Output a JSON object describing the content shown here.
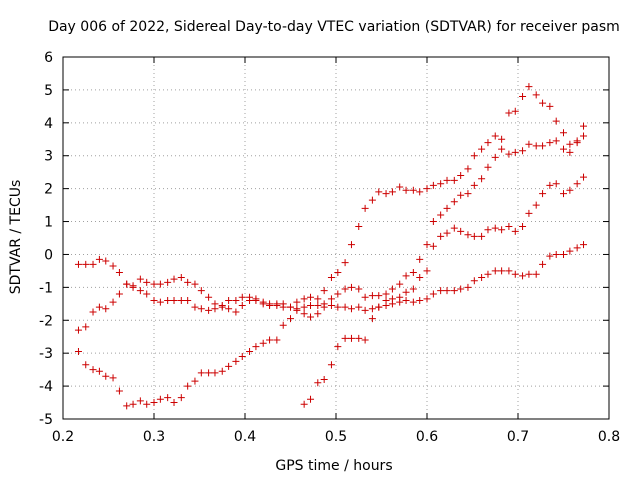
{
  "chart_data": {
    "type": "scatter",
    "title": "Day 006 of 2022, Sidereal Day-to-day VTEC variation (SDTVAR) for receiver pasm",
    "xlabel": "GPS time / hours",
    "ylabel": "SDTVAR / TECUs",
    "xlim": [
      0.2,
      0.8
    ],
    "ylim": [
      -5,
      6
    ],
    "grid": true,
    "legend": "none",
    "marker": "plus",
    "color": "#cc0000",
    "x_ticks": [
      "0.2",
      "0.3",
      "0.4",
      "0.5",
      "0.6",
      "0.7",
      "0.8"
    ],
    "y_ticks": [
      "-5",
      "-4",
      "-3",
      "-2",
      "-1",
      "0",
      "1",
      "2",
      "3",
      "4",
      "5",
      "6"
    ],
    "series": [
      {
        "x": [
          0.217,
          0.225,
          0.233,
          0.24,
          0.247,
          0.255,
          0.262,
          0.27,
          0.277,
          0.285,
          0.292,
          0.3,
          0.307,
          0.315,
          0.322,
          0.33,
          0.337,
          0.345,
          0.352,
          0.36,
          0.367,
          0.375,
          0.382,
          0.39,
          0.397,
          0.405,
          0.412,
          0.42,
          0.427,
          0.435,
          0.442,
          0.45,
          0.457,
          0.465,
          0.472,
          0.48,
          0.487,
          0.495,
          0.502,
          0.51,
          0.517,
          0.525,
          0.532,
          0.54,
          0.547,
          0.555,
          0.562,
          0.57,
          0.577,
          0.585,
          0.592,
          0.6,
          0.607,
          0.615,
          0.622,
          0.63,
          0.637,
          0.645,
          0.652,
          0.66,
          0.667,
          0.675,
          0.682,
          0.69,
          0.697,
          0.705,
          0.712,
          0.72,
          0.727,
          0.735,
          0.742,
          0.75,
          0.757,
          0.765,
          0.772
        ],
        "y": [
          -0.3,
          -0.3,
          -0.3,
          -0.15,
          -0.2,
          -0.35,
          -0.55,
          -0.9,
          -0.95,
          -0.75,
          -0.85,
          -0.9,
          -0.9,
          -0.85,
          -0.75,
          -0.7,
          -0.85,
          -0.9,
          -1.1,
          -1.3,
          -1.5,
          -1.55,
          -1.65,
          -1.75,
          -1.55,
          -1.4,
          -1.35,
          -1.45,
          -1.5,
          -1.55,
          -1.5,
          -1.6,
          -1.45,
          -1.35,
          -1.3,
          -1.35,
          -1.1,
          -0.7,
          -0.55,
          -0.25,
          0.3,
          0.85,
          1.4,
          1.65,
          1.9,
          1.85,
          1.9,
          2.05,
          1.95,
          1.95,
          1.9,
          2.0,
          2.1,
          2.15,
          2.25,
          2.25,
          2.4,
          2.6,
          3.0,
          3.2,
          3.4,
          3.6,
          3.5,
          4.3,
          4.35,
          4.8,
          5.1,
          4.85,
          4.6,
          4.5,
          4.05,
          3.7,
          3.35,
          3.4,
          3.9
        ]
      },
      {
        "x": [
          0.217,
          0.225,
          0.233,
          0.24,
          0.247,
          0.255,
          0.262,
          0.27,
          0.277,
          0.285,
          0.292,
          0.3,
          0.307,
          0.315,
          0.322,
          0.33,
          0.337,
          0.345,
          0.352,
          0.36,
          0.367,
          0.375,
          0.382,
          0.39,
          0.397,
          0.405,
          0.412,
          0.42,
          0.427,
          0.435,
          0.442,
          0.45,
          0.457,
          0.465,
          0.472,
          0.48,
          0.487,
          0.495,
          0.502,
          0.51,
          0.517,
          0.525,
          0.532,
          0.54,
          0.547,
          0.555,
          0.562,
          0.57,
          0.577,
          0.585,
          0.592,
          0.6,
          0.607,
          0.615,
          0.622,
          0.63,
          0.637,
          0.645,
          0.652,
          0.66,
          0.667,
          0.675,
          0.682,
          0.69,
          0.697,
          0.705,
          0.712,
          0.72,
          0.727,
          0.735,
          0.742,
          0.75,
          0.757,
          0.765,
          0.772
        ],
        "y": [
          -2.3,
          -2.2,
          -1.75,
          -1.6,
          -1.65,
          -1.45,
          -1.2,
          -0.9,
          -1.0,
          -1.1,
          -1.2,
          -1.4,
          -1.45,
          -1.4,
          -1.4,
          -1.4,
          -1.4,
          -1.6,
          -1.65,
          -1.7,
          -1.65,
          -1.6,
          -1.4,
          -1.4,
          -1.3,
          -1.3,
          -1.4,
          -1.5,
          -1.55,
          -1.5,
          -1.6,
          -1.6,
          -1.65,
          -1.6,
          -1.55,
          -1.55,
          -1.5,
          -1.55,
          -1.6,
          -1.6,
          -1.65,
          -1.6,
          -1.7,
          -1.65,
          -1.6,
          -1.55,
          -1.5,
          -1.45,
          -1.4,
          -1.45,
          -1.4,
          -1.35,
          -1.2,
          -1.1,
          -1.1,
          -1.1,
          -1.05,
          -1.0,
          -0.8,
          -0.7,
          -0.6,
          -0.5,
          -0.5,
          -0.5,
          -0.6,
          -0.65,
          -0.6,
          -0.6,
          -0.3,
          -0.05,
          0.0,
          0.0,
          0.1,
          0.2,
          0.3
        ]
      },
      {
        "x": [
          0.217,
          0.225,
          0.233,
          0.24,
          0.247,
          0.255,
          0.262,
          0.27,
          0.277,
          0.285,
          0.292,
          0.3,
          0.307,
          0.315,
          0.322,
          0.33,
          0.337,
          0.345,
          0.352,
          0.36,
          0.367,
          0.375,
          0.382,
          0.39,
          0.397,
          0.405,
          0.412,
          0.42,
          0.427,
          0.435,
          0.442,
          0.45,
          0.457,
          0.465,
          0.472,
          0.48,
          0.487,
          0.495,
          0.502,
          0.51,
          0.517,
          0.525,
          0.532,
          0.54,
          0.547,
          0.555,
          0.562,
          0.57,
          0.577,
          0.585,
          0.592,
          0.6,
          0.607,
          0.615,
          0.622,
          0.63,
          0.637,
          0.645,
          0.652,
          0.66,
          0.667,
          0.675,
          0.682,
          0.69,
          0.697,
          0.705,
          0.712,
          0.72,
          0.727,
          0.735,
          0.742,
          0.75,
          0.757,
          0.765,
          0.772
        ],
        "y": [
          -2.95,
          -3.35,
          -3.5,
          -3.55,
          -3.7,
          -3.75,
          -4.15,
          -4.6,
          -4.55,
          -4.45,
          -4.55,
          -4.5,
          -4.4,
          -4.35,
          -4.5,
          -4.35,
          -4.0,
          -3.85,
          -3.6,
          -3.6,
          -3.6,
          -3.55,
          -3.4,
          -3.25,
          -3.1,
          -2.95,
          -2.8,
          -2.7,
          -2.6,
          -2.6,
          -2.15,
          -1.95,
          -1.7,
          -1.8,
          -1.9,
          -1.8,
          -1.6,
          -1.35,
          -1.2,
          -1.05,
          -1.0,
          -1.05,
          -1.3,
          -1.25,
          -1.25,
          -1.2,
          -1.35,
          -1.3,
          -1.15,
          -1.05,
          -0.7,
          -0.5,
          0.25,
          0.55,
          0.65,
          0.8,
          0.7,
          0.6,
          0.55,
          0.55,
          0.75,
          0.8,
          0.75,
          0.85,
          0.7,
          0.85,
          1.25,
          1.5,
          1.85,
          2.1,
          2.15,
          1.85,
          1.95,
          2.15,
          2.35
        ]
      },
      {
        "x": [
          0.465,
          0.472,
          0.48,
          0.487,
          0.495,
          0.502,
          0.51,
          0.517,
          0.525,
          0.532,
          0.54,
          0.547,
          0.555,
          0.562,
          0.57,
          0.577,
          0.585,
          0.592,
          0.6,
          0.607,
          0.615,
          0.622,
          0.63,
          0.637,
          0.645,
          0.652,
          0.66,
          0.667,
          0.675,
          0.682,
          0.69,
          0.697,
          0.705,
          0.712,
          0.72,
          0.727,
          0.735,
          0.742,
          0.75,
          0.757,
          0.765,
          0.772
        ],
        "y": [
          -4.55,
          -4.4,
          -3.9,
          -3.8,
          -3.35,
          -2.8,
          -2.55,
          -2.55,
          -2.55,
          -2.6,
          -1.95,
          -1.6,
          -1.4,
          -1.05,
          -0.9,
          -0.65,
          -0.55,
          -0.15,
          0.3,
          1.0,
          1.2,
          1.4,
          1.6,
          1.8,
          1.85,
          2.1,
          2.3,
          2.65,
          2.95,
          3.2,
          3.05,
          3.1,
          3.15,
          3.35,
          3.3,
          3.3,
          3.4,
          3.45,
          3.2,
          3.1,
          3.45,
          3.6
        ]
      }
    ]
  }
}
